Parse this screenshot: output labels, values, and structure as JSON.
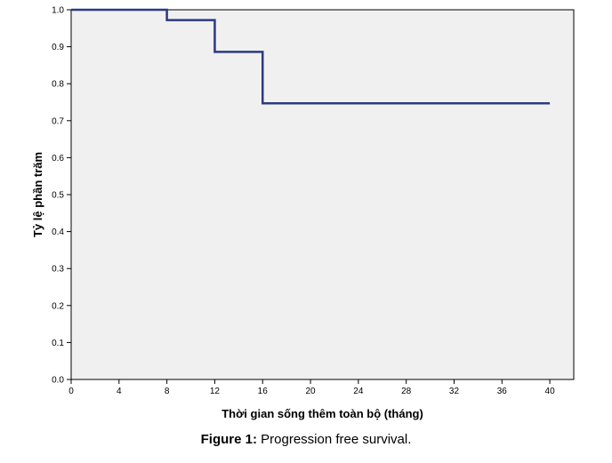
{
  "chart_data": {
    "type": "line",
    "step": true,
    "xlabel": "Thời gian sống thêm toàn bộ (tháng)",
    "ylabel": "Tỷ lệ phần trăm",
    "xlim": [
      0,
      42
    ],
    "ylim": [
      0,
      1.0
    ],
    "x_ticks": [
      "0",
      "4",
      "8",
      "12",
      "16",
      "20",
      "24",
      "28",
      "32",
      "36",
      "40"
    ],
    "y_ticks": [
      "0.0",
      "0.1",
      "0.2",
      "0.3",
      "0.4",
      "0.5",
      "0.6",
      "0.7",
      "0.8",
      "0.9",
      "1.0"
    ],
    "series": [
      {
        "x": [
          0,
          8,
          12,
          16,
          40
        ],
        "y": [
          1.0,
          0.972,
          0.886,
          0.747,
          0.747
        ],
        "color": "#2b3a80"
      }
    ],
    "plot_background": "#f0f0f0",
    "grid": false
  },
  "caption": {
    "label": "Figure 1:",
    "text": " Progression free survival."
  }
}
